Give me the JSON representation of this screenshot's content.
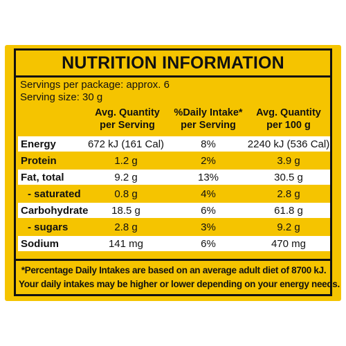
{
  "label": {
    "title": "NUTRITION INFORMATION",
    "servings_per_package": "Servings per package: approx. 6",
    "serving_size": "Serving size: 30 g",
    "headers": {
      "per_serving_line1": "Avg. Quantity",
      "per_serving_line2": "per Serving",
      "daily_intake_line1": "%Daily Intake*",
      "daily_intake_line2": "per Serving",
      "per_100g_line1": "Avg. Quantity",
      "per_100g_line2": "per 100 g"
    },
    "rows": [
      {
        "name": "Energy",
        "per_serving": "672 kJ (161 Cal)",
        "daily_intake": "8%",
        "per_100g": "2240 kJ (536 Cal)"
      },
      {
        "name": "Protein",
        "per_serving": "1.2 g",
        "daily_intake": "2%",
        "per_100g": "3.9 g"
      },
      {
        "name": "Fat, total",
        "per_serving": "9.2 g",
        "daily_intake": "13%",
        "per_100g": "30.5 g"
      },
      {
        "name": "- saturated",
        "per_serving": "0.8 g",
        "daily_intake": "4%",
        "per_100g": "2.8 g"
      },
      {
        "name": "Carbohydrate",
        "per_serving": "18.5 g",
        "daily_intake": "6%",
        "per_100g": "61.8 g"
      },
      {
        "name": "- sugars",
        "per_serving": "2.8 g",
        "daily_intake": "3%",
        "per_100g": "9.2 g"
      },
      {
        "name": "Sodium",
        "per_serving": "141 mg",
        "daily_intake": "6%",
        "per_100g": "470 mg"
      }
    ],
    "footnote_line1": "*Percentage Daily Intakes are based on an average adult diet of 8700 kJ.",
    "footnote_line2": "Your daily intakes may be higher or lower depending on your energy needs.",
    "colors": {
      "background": "#f5c400",
      "row_highlight": "#ffffff",
      "ink": "#111111"
    }
  }
}
